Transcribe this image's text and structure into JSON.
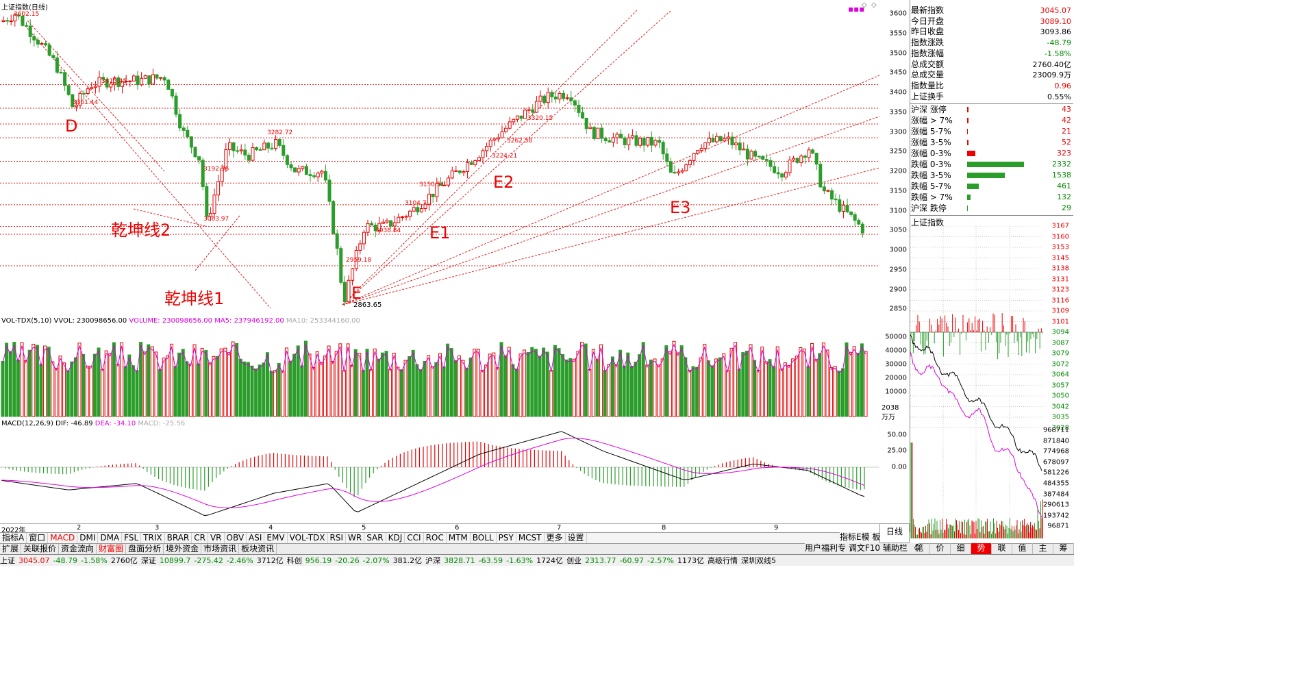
{
  "colors": {
    "up": "#e60000",
    "down": "#2a9d2a",
    "grid": "#d22",
    "ma5": "#d400d4",
    "dif": "#000000",
    "dea": "#e000e0"
  },
  "main": {
    "title": "上证指数(日线)",
    "top_label": "3602.15",
    "y_ticks": [
      "3600",
      "3550",
      "3500",
      "3450",
      "3400",
      "3350",
      "3300",
      "3250",
      "3200",
      "3150",
      "3100",
      "3050",
      "3000",
      "2950",
      "2900",
      "2850"
    ],
    "price_labels": [
      "3602.15",
      "3361.44",
      "3415.45",
      "3282.72",
      "3192.36",
      "3063.97",
      "2959.18",
      "3038.84",
      "3104.7",
      "3150.51",
      "3224.21",
      "3262.58",
      "3320.15",
      "2863.65"
    ],
    "annotations": [
      "D",
      "E",
      "E1",
      "E2",
      "E3",
      "乾坤线2",
      "乾坤线1"
    ]
  },
  "volume": {
    "indicator": "VOL-TDX(5,10)",
    "vvol": "VVOL: 230098656.00",
    "volume": "VOLUME: 230098656.00",
    "ma5": "MA5: 237946192.00",
    "ma10": "MA10: 253344160.00",
    "y_ticks": [
      "50000",
      "40000",
      "30000",
      "20000",
      "10000"
    ],
    "unit_top": "2038",
    "unit_bottom": "万万"
  },
  "macd": {
    "indicator": "MACD(12,26,9)",
    "dif": "DIF: -46.89",
    "dea": "DEA: -34.10",
    "macd": "MACD: -25.56",
    "y_ticks": [
      "50.00",
      "25.00",
      "0.00"
    ]
  },
  "dates": [
    "2022年",
    "2",
    "3",
    "4",
    "5",
    "6",
    "7",
    "8",
    "9"
  ],
  "tabs1": [
    "指标A",
    "窗口",
    "MACD",
    "DMI",
    "DMA",
    "FSL",
    "TRIX",
    "BRAR",
    "CR",
    "VR",
    "OBV",
    "ASI",
    "EMV",
    "VOL-TDX",
    "RSI",
    "WR",
    "SAR",
    "KDJ",
    "CCI",
    "ROC",
    "MTM",
    "BOLL",
    "PSY",
    "MCST",
    "更多",
    "设置"
  ],
  "tabs1_right": [
    "指标E模",
    "板"
  ],
  "tabs1_far": [
    "日线"
  ],
  "tabs2": [
    "扩展",
    "关联报价",
    "资金流向",
    "财富圈",
    "盘面分析",
    "境外资金",
    "市场资讯",
    "板块资讯"
  ],
  "tabs2_right": [
    "用户福利专",
    "调文F10",
    "辅助栏",
    "《"
  ],
  "right_tabs": [
    "笔",
    "价",
    "细",
    "势",
    "联",
    "值",
    "主",
    "筹"
  ],
  "quote": [
    {
      "label": "最新指数",
      "value": "3045.07",
      "color": "red"
    },
    {
      "label": "今日开盘",
      "value": "3089.10",
      "color": "red"
    },
    {
      "label": "昨日收盘",
      "value": "3093.86",
      "color": "black"
    },
    {
      "label": "指数涨跌",
      "value": "-48.79",
      "color": "green"
    },
    {
      "label": "指数涨幅",
      "value": "-1.58%",
      "color": "green"
    },
    {
      "label": "总成交额",
      "value": "2760.40亿",
      "color": "black"
    },
    {
      "label": "总成交量",
      "value": "23009.9万",
      "color": "black"
    },
    {
      "label": "指数量比",
      "value": "0.96",
      "color": "red"
    },
    {
      "label": "上证换手",
      "value": "0.55%",
      "color": "black"
    }
  ],
  "distribution": [
    {
      "label": "沪深 涨停",
      "value": "43",
      "color": "red",
      "ratio": 0.02
    },
    {
      "label": "涨幅 > 7%",
      "value": "42",
      "color": "red",
      "ratio": 0.02
    },
    {
      "label": "涨幅 5-7%",
      "value": "21",
      "color": "red",
      "ratio": 0.01
    },
    {
      "label": "涨幅 3-5%",
      "value": "52",
      "color": "red",
      "ratio": 0.025
    },
    {
      "label": "涨幅 0-3%",
      "value": "323",
      "color": "red",
      "ratio": 0.14
    },
    {
      "label": "跌幅 0-3%",
      "value": "2332",
      "color": "green",
      "ratio": 1.0
    },
    {
      "label": "跌幅 3-5%",
      "value": "1538",
      "color": "green",
      "ratio": 0.66
    },
    {
      "label": "跌幅 5-7%",
      "value": "461",
      "color": "green",
      "ratio": 0.2
    },
    {
      "label": "跌幅 > 7%",
      "value": "132",
      "color": "green",
      "ratio": 0.06
    },
    {
      "label": "沪深 跌停",
      "value": "29",
      "color": "green",
      "ratio": 0.01
    }
  ],
  "mini": {
    "title": "上证指数",
    "price_ticks": [
      "3167",
      "3160",
      "3153",
      "3145",
      "3138",
      "3131",
      "3123",
      "3116",
      "3109",
      "3101",
      "3094",
      "3087",
      "3079",
      "3072",
      "3064",
      "3057",
      "3050",
      "3042",
      "3035",
      "3028"
    ],
    "vol_ticks": [
      "968711",
      "871840",
      "774968",
      "678097",
      "581226",
      "484355",
      "387484",
      "290613",
      "193742",
      "96871"
    ]
  },
  "status": [
    {
      "text": "上证",
      "color": "black"
    },
    {
      "text": "3045.07",
      "color": "red"
    },
    {
      "text": "-48.79",
      "color": "green"
    },
    {
      "text": "-1.58%",
      "color": "green"
    },
    {
      "text": "2760亿",
      "color": "black"
    },
    {
      "text": "深证",
      "color": "black"
    },
    {
      "text": "10899.7",
      "color": "green"
    },
    {
      "text": "-275.42",
      "color": "green"
    },
    {
      "text": "-2.46%",
      "color": "green"
    },
    {
      "text": "3712亿",
      "color": "black"
    },
    {
      "text": "科创",
      "color": "black"
    },
    {
      "text": "956.19",
      "color": "green"
    },
    {
      "text": "-20.26",
      "color": "green"
    },
    {
      "text": "-2.07%",
      "color": "green"
    },
    {
      "text": "381.2亿",
      "color": "black"
    },
    {
      "text": "沪深",
      "color": "black"
    },
    {
      "text": "3828.71",
      "color": "green"
    },
    {
      "text": "-63.59",
      "color": "green"
    },
    {
      "text": "-1.63%",
      "color": "green"
    },
    {
      "text": "1724亿",
      "color": "black"
    },
    {
      "text": "创业",
      "color": "black"
    },
    {
      "text": "2313.77",
      "color": "green"
    },
    {
      "text": "-60.97",
      "color": "green"
    },
    {
      "text": "-2.57%",
      "color": "green"
    },
    {
      "text": "1173亿",
      "color": "black"
    },
    {
      "text": "高级行情",
      "color": "black"
    },
    {
      "text": "深圳双线5",
      "color": "black"
    }
  ]
}
